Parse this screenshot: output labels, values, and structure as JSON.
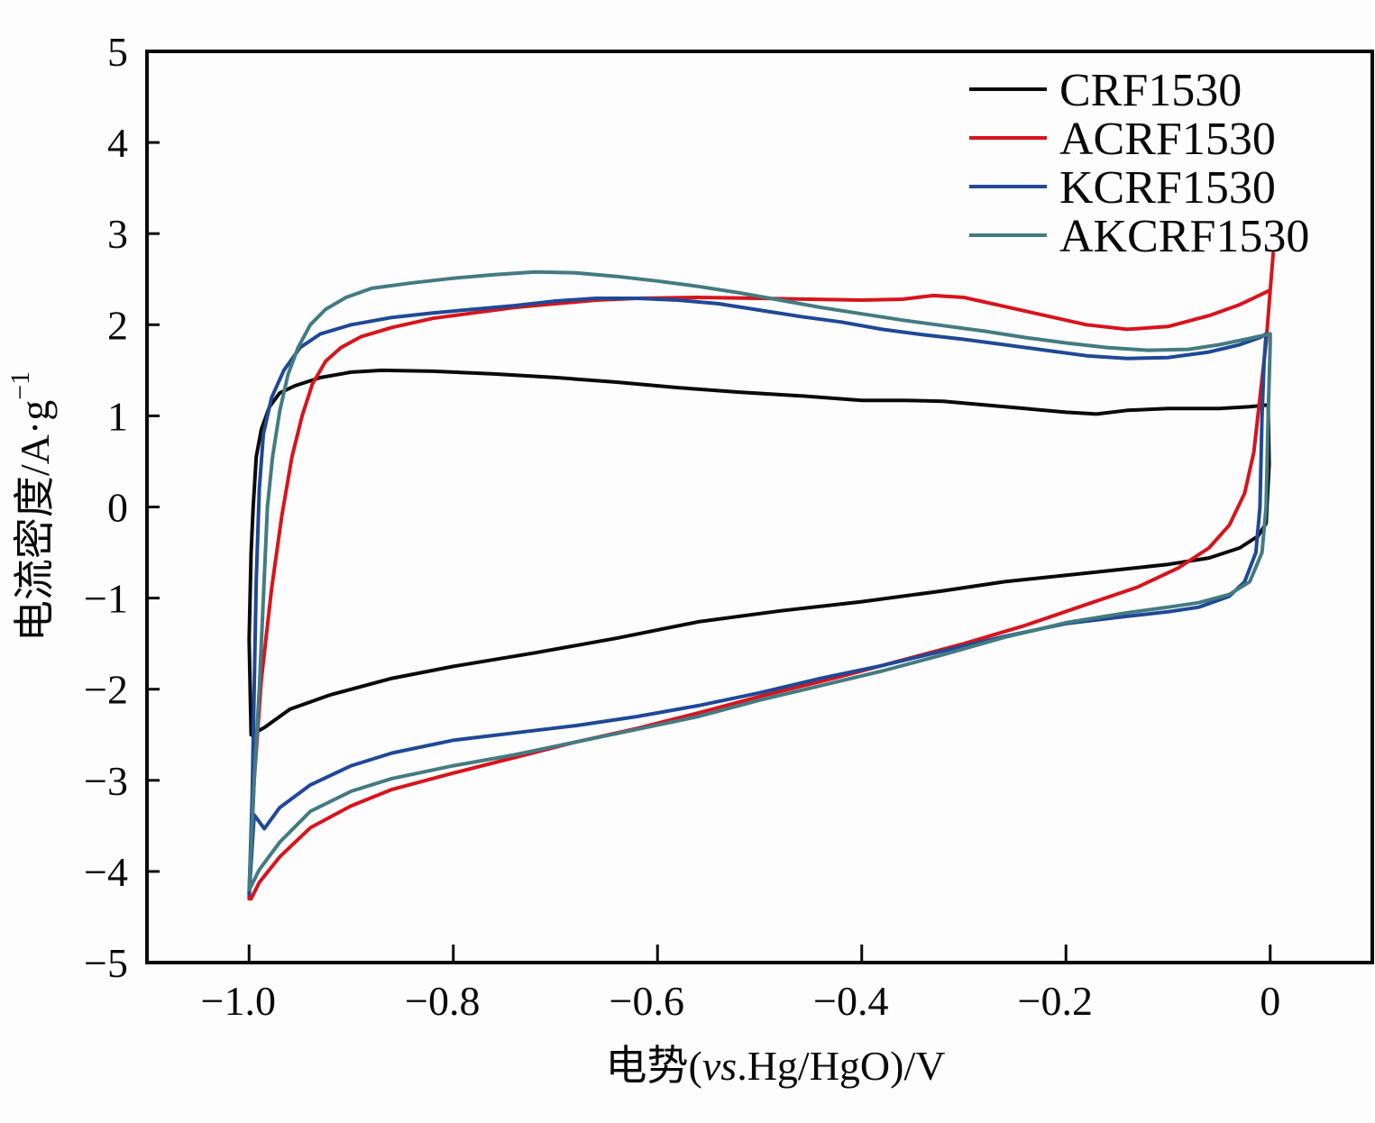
{
  "chart_data": {
    "type": "line",
    "title": "",
    "xlabel": "电势(vs.Hg/HgO)/V",
    "xlabel_parts": {
      "prefix": "电势(",
      "italic": "vs",
      "suffix": ".Hg/HgO)/V"
    },
    "ylabel": "电流密度/A·g⁻¹",
    "ylabel_parts": {
      "base": "电流密度/A·g",
      "sup": "−1"
    },
    "xlim": [
      -1.1,
      0.1
    ],
    "ylim": [
      -5,
      5
    ],
    "grid": false,
    "legend_position": "top-right",
    "x_ticks": [
      -1.0,
      -0.8,
      -0.6,
      -0.4,
      -0.2,
      0
    ],
    "x_tick_labels": [
      "−1.0",
      "−0.8",
      "−0.6",
      "−0.4",
      "−0.2",
      "0"
    ],
    "y_ticks": [
      5,
      4,
      3,
      2,
      1,
      0,
      -1,
      -2,
      -3,
      -4,
      -5
    ],
    "y_tick_labels": [
      "5",
      "4",
      "3",
      "2",
      "1",
      "0",
      "−1",
      "−2",
      "−3",
      "−4",
      "−5"
    ],
    "series": [
      {
        "name": "CRF1530",
        "color": "#0a0a0a",
        "points": [
          [
            -1.0,
            -1.45
          ],
          [
            -0.998,
            -0.5
          ],
          [
            -0.996,
            0.0
          ],
          [
            -0.993,
            0.55
          ],
          [
            -0.988,
            0.85
          ],
          [
            -0.98,
            1.1
          ],
          [
            -0.97,
            1.25
          ],
          [
            -0.955,
            1.33
          ],
          [
            -0.93,
            1.42
          ],
          [
            -0.9,
            1.48
          ],
          [
            -0.87,
            1.5
          ],
          [
            -0.82,
            1.49
          ],
          [
            -0.76,
            1.46
          ],
          [
            -0.7,
            1.42
          ],
          [
            -0.64,
            1.37
          ],
          [
            -0.58,
            1.31
          ],
          [
            -0.52,
            1.26
          ],
          [
            -0.46,
            1.22
          ],
          [
            -0.4,
            1.17
          ],
          [
            -0.36,
            1.17
          ],
          [
            -0.32,
            1.16
          ],
          [
            -0.28,
            1.12
          ],
          [
            -0.24,
            1.08
          ],
          [
            -0.2,
            1.04
          ],
          [
            -0.17,
            1.02
          ],
          [
            -0.14,
            1.06
          ],
          [
            -0.1,
            1.08
          ],
          [
            -0.05,
            1.08
          ],
          [
            -0.02,
            1.1
          ],
          [
            -0.002,
            1.12
          ],
          [
            -0.001,
            0.47
          ],
          [
            -0.004,
            -0.18
          ],
          [
            -0.012,
            -0.32
          ],
          [
            -0.03,
            -0.45
          ],
          [
            -0.06,
            -0.56
          ],
          [
            -0.1,
            -0.63
          ],
          [
            -0.15,
            -0.69
          ],
          [
            -0.2,
            -0.75
          ],
          [
            -0.26,
            -0.82
          ],
          [
            -0.32,
            -0.92
          ],
          [
            -0.4,
            -1.04
          ],
          [
            -0.48,
            -1.14
          ],
          [
            -0.56,
            -1.26
          ],
          [
            -0.64,
            -1.44
          ],
          [
            -0.72,
            -1.6
          ],
          [
            -0.8,
            -1.75
          ],
          [
            -0.86,
            -1.88
          ],
          [
            -0.92,
            -2.06
          ],
          [
            -0.96,
            -2.22
          ],
          [
            -0.985,
            -2.42
          ],
          [
            -0.998,
            -2.5
          ],
          [
            -1.0,
            -1.45
          ]
        ]
      },
      {
        "name": "ACRF1530",
        "color": "#d8141c",
        "points": [
          [
            -1.0,
            -4.3
          ],
          [
            -0.995,
            -3.0
          ],
          [
            -0.988,
            -1.9
          ],
          [
            -0.978,
            -0.9
          ],
          [
            -0.968,
            -0.1
          ],
          [
            -0.958,
            0.55
          ],
          [
            -0.948,
            1.0
          ],
          [
            -0.938,
            1.35
          ],
          [
            -0.925,
            1.6
          ],
          [
            -0.91,
            1.75
          ],
          [
            -0.89,
            1.87
          ],
          [
            -0.86,
            1.97
          ],
          [
            -0.82,
            2.07
          ],
          [
            -0.78,
            2.13
          ],
          [
            -0.74,
            2.19
          ],
          [
            -0.7,
            2.23
          ],
          [
            -0.66,
            2.27
          ],
          [
            -0.62,
            2.29
          ],
          [
            -0.56,
            2.3
          ],
          [
            -0.5,
            2.29
          ],
          [
            -0.45,
            2.28
          ],
          [
            -0.4,
            2.27
          ],
          [
            -0.36,
            2.28
          ],
          [
            -0.33,
            2.32
          ],
          [
            -0.3,
            2.3
          ],
          [
            -0.26,
            2.2
          ],
          [
            -0.22,
            2.1
          ],
          [
            -0.18,
            2.0
          ],
          [
            -0.14,
            1.95
          ],
          [
            -0.1,
            1.98
          ],
          [
            -0.06,
            2.1
          ],
          [
            -0.03,
            2.22
          ],
          [
            0.0,
            2.38
          ],
          [
            0.003,
            2.78
          ],
          [
            0.0,
            2.38
          ],
          [
            -0.004,
            1.8
          ],
          [
            -0.01,
            1.2
          ],
          [
            -0.016,
            0.6
          ],
          [
            -0.025,
            0.15
          ],
          [
            -0.04,
            -0.2
          ],
          [
            -0.06,
            -0.45
          ],
          [
            -0.09,
            -0.67
          ],
          [
            -0.13,
            -0.88
          ],
          [
            -0.18,
            -1.07
          ],
          [
            -0.24,
            -1.3
          ],
          [
            -0.3,
            -1.5
          ],
          [
            -0.36,
            -1.68
          ],
          [
            -0.42,
            -1.86
          ],
          [
            -0.5,
            -2.08
          ],
          [
            -0.56,
            -2.26
          ],
          [
            -0.62,
            -2.43
          ],
          [
            -0.68,
            -2.58
          ],
          [
            -0.74,
            -2.75
          ],
          [
            -0.8,
            -2.92
          ],
          [
            -0.86,
            -3.1
          ],
          [
            -0.9,
            -3.28
          ],
          [
            -0.94,
            -3.52
          ],
          [
            -0.97,
            -3.84
          ],
          [
            -0.99,
            -4.12
          ],
          [
            -0.998,
            -4.3
          ],
          [
            -1.0,
            -4.3
          ]
        ]
      },
      {
        "name": "KCRF1530",
        "color": "#1f4997",
        "points": [
          [
            -1.0,
            -4.25
          ],
          [
            -0.997,
            -3.2
          ],
          [
            -0.995,
            -2.0
          ],
          [
            -0.993,
            -0.8
          ],
          [
            -0.99,
            0.2
          ],
          [
            -0.986,
            0.8
          ],
          [
            -0.978,
            1.2
          ],
          [
            -0.966,
            1.5
          ],
          [
            -0.95,
            1.75
          ],
          [
            -0.93,
            1.9
          ],
          [
            -0.9,
            2.0
          ],
          [
            -0.86,
            2.08
          ],
          [
            -0.82,
            2.13
          ],
          [
            -0.78,
            2.17
          ],
          [
            -0.74,
            2.21
          ],
          [
            -0.7,
            2.26
          ],
          [
            -0.66,
            2.29
          ],
          [
            -0.62,
            2.29
          ],
          [
            -0.58,
            2.27
          ],
          [
            -0.54,
            2.23
          ],
          [
            -0.5,
            2.16
          ],
          [
            -0.46,
            2.09
          ],
          [
            -0.42,
            2.03
          ],
          [
            -0.38,
            1.95
          ],
          [
            -0.34,
            1.89
          ],
          [
            -0.3,
            1.84
          ],
          [
            -0.26,
            1.78
          ],
          [
            -0.22,
            1.72
          ],
          [
            -0.18,
            1.66
          ],
          [
            -0.14,
            1.63
          ],
          [
            -0.1,
            1.64
          ],
          [
            -0.06,
            1.7
          ],
          [
            -0.03,
            1.78
          ],
          [
            -0.01,
            1.86
          ],
          [
            -0.004,
            1.9
          ],
          [
            -0.006,
            1.6
          ],
          [
            -0.008,
            1.0
          ],
          [
            -0.01,
            0.0
          ],
          [
            -0.014,
            -0.5
          ],
          [
            -0.025,
            -0.82
          ],
          [
            -0.04,
            -0.98
          ],
          [
            -0.07,
            -1.1
          ],
          [
            -0.1,
            -1.15
          ],
          [
            -0.14,
            -1.2
          ],
          [
            -0.2,
            -1.28
          ],
          [
            -0.26,
            -1.42
          ],
          [
            -0.32,
            -1.58
          ],
          [
            -0.38,
            -1.74
          ],
          [
            -0.44,
            -1.88
          ],
          [
            -0.5,
            -2.04
          ],
          [
            -0.56,
            -2.18
          ],
          [
            -0.62,
            -2.3
          ],
          [
            -0.68,
            -2.4
          ],
          [
            -0.74,
            -2.48
          ],
          [
            -0.8,
            -2.56
          ],
          [
            -0.86,
            -2.7
          ],
          [
            -0.9,
            -2.84
          ],
          [
            -0.94,
            -3.05
          ],
          [
            -0.97,
            -3.3
          ],
          [
            -0.985,
            -3.53
          ],
          [
            -0.995,
            -3.38
          ],
          [
            -1.0,
            -4.25
          ]
        ]
      },
      {
        "name": "AKCRF1530",
        "color": "#437b82",
        "points": [
          [
            -1.0,
            -4.2
          ],
          [
            -0.995,
            -3.0
          ],
          [
            -0.99,
            -2.0
          ],
          [
            -0.986,
            -1.0
          ],
          [
            -0.982,
            0.0
          ],
          [
            -0.977,
            0.55
          ],
          [
            -0.97,
            1.05
          ],
          [
            -0.962,
            1.45
          ],
          [
            -0.952,
            1.75
          ],
          [
            -0.94,
            2.0
          ],
          [
            -0.925,
            2.17
          ],
          [
            -0.905,
            2.3
          ],
          [
            -0.88,
            2.4
          ],
          [
            -0.84,
            2.46
          ],
          [
            -0.8,
            2.51
          ],
          [
            -0.76,
            2.55
          ],
          [
            -0.72,
            2.58
          ],
          [
            -0.68,
            2.57
          ],
          [
            -0.64,
            2.53
          ],
          [
            -0.6,
            2.48
          ],
          [
            -0.56,
            2.42
          ],
          [
            -0.52,
            2.35
          ],
          [
            -0.48,
            2.27
          ],
          [
            -0.44,
            2.19
          ],
          [
            -0.4,
            2.12
          ],
          [
            -0.36,
            2.05
          ],
          [
            -0.32,
            1.99
          ],
          [
            -0.28,
            1.93
          ],
          [
            -0.24,
            1.86
          ],
          [
            -0.2,
            1.8
          ],
          [
            -0.16,
            1.75
          ],
          [
            -0.12,
            1.72
          ],
          [
            -0.08,
            1.73
          ],
          [
            -0.05,
            1.78
          ],
          [
            -0.02,
            1.85
          ],
          [
            0.0,
            1.9
          ],
          [
            0.0,
            1.8
          ],
          [
            -0.002,
            1.0
          ],
          [
            -0.004,
            0.0
          ],
          [
            -0.008,
            -0.5
          ],
          [
            -0.02,
            -0.82
          ],
          [
            -0.04,
            -0.96
          ],
          [
            -0.07,
            -1.05
          ],
          [
            -0.1,
            -1.1
          ],
          [
            -0.14,
            -1.16
          ],
          [
            -0.2,
            -1.27
          ],
          [
            -0.26,
            -1.43
          ],
          [
            -0.32,
            -1.62
          ],
          [
            -0.38,
            -1.8
          ],
          [
            -0.44,
            -1.96
          ],
          [
            -0.5,
            -2.12
          ],
          [
            -0.56,
            -2.3
          ],
          [
            -0.62,
            -2.44
          ],
          [
            -0.68,
            -2.58
          ],
          [
            -0.74,
            -2.72
          ],
          [
            -0.8,
            -2.84
          ],
          [
            -0.86,
            -2.98
          ],
          [
            -0.9,
            -3.12
          ],
          [
            -0.94,
            -3.34
          ],
          [
            -0.97,
            -3.68
          ],
          [
            -0.99,
            -3.98
          ],
          [
            -0.998,
            -4.16
          ],
          [
            -1.0,
            -4.2
          ]
        ]
      }
    ]
  }
}
